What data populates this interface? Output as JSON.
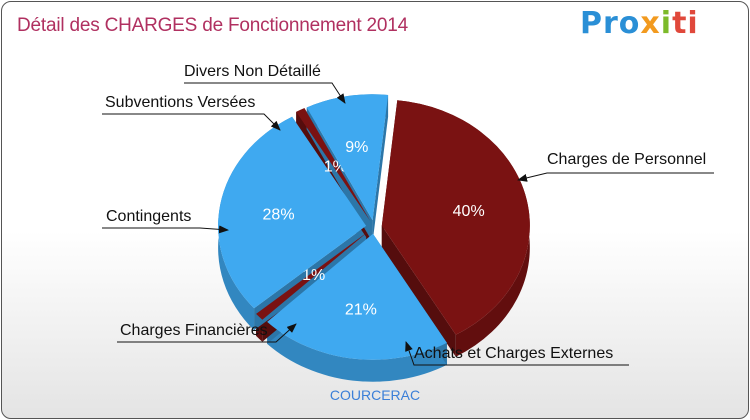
{
  "header": {
    "title": "Détail des CHARGES de Fonctionnement 2014",
    "logo": {
      "p1": "Pro",
      "p2": "x",
      "p3": "i",
      "p4": "ti"
    }
  },
  "footer": {
    "commune": "COURCERAC"
  },
  "colors": {
    "dark_red": "#7a1212",
    "blue": "#3fa9f0",
    "title": "#b03060"
  },
  "chart_data": {
    "type": "pie",
    "title": "Détail des CHARGES de Fonctionnement 2014",
    "slices": [
      {
        "label": "Charges de Personnel",
        "value": 40,
        "pct_label": "40%",
        "color": "#7a1212"
      },
      {
        "label": "Achats et Charges Externes",
        "value": 21,
        "pct_label": "21%",
        "color": "#3fa9f0"
      },
      {
        "label": "Charges Financières",
        "value": 1,
        "pct_label": "1%",
        "color": "#7a1212"
      },
      {
        "label": "Contingents",
        "value": 28,
        "pct_label": "28%",
        "color": "#3fa9f0"
      },
      {
        "label": "Subventions Versées",
        "value": 1,
        "pct_label": "1%",
        "color": "#7a1212"
      },
      {
        "label": "Divers Non Détaillé",
        "value": 9,
        "pct_label": "9%",
        "color": "#3fa9f0"
      }
    ]
  }
}
